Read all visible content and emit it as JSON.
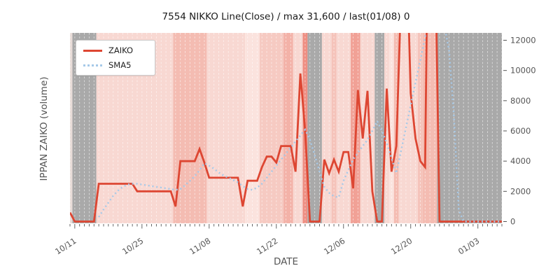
{
  "figure": {
    "title": "7554 NIKKO Line(Close) / max 31,600 / last(01/08) 0",
    "xlabel": "DATE",
    "ylabel": "IPPAN ZAIKO (volume)"
  },
  "legend": {
    "items": [
      {
        "label": "ZAIKO",
        "color": "#dd4632",
        "style": "solid"
      },
      {
        "label": "SMA5",
        "color": "#a6c9e8",
        "style": "dotted"
      }
    ]
  },
  "chart_data": {
    "type": "line",
    "title": "7554 NIKKO Line(Close) / max 31,600 / last(01/08) 0",
    "xlabel": "DATE",
    "ylabel": "IPPAN ZAIKO (volume)",
    "x_tick_labels": [
      "10/11",
      "10/25",
      "11/08",
      "11/22",
      "12/06",
      "12/20",
      "01/03"
    ],
    "y_ticks": [
      0,
      2000,
      4000,
      6000,
      8000,
      10000,
      12000
    ],
    "ylim": [
      -116,
      12487
    ],
    "grid": "vertical white dashed line per day",
    "legend_position": "upper left",
    "annotations": {
      "max": "31,600",
      "last": "last(01/08) 0"
    },
    "dates": [
      "10/10",
      "10/11",
      "10/12",
      "10/13",
      "10/14",
      "10/15",
      "10/16",
      "10/17",
      "10/18",
      "10/19",
      "10/20",
      "10/21",
      "10/22",
      "10/23",
      "10/24",
      "10/25",
      "10/26",
      "10/27",
      "10/28",
      "10/29",
      "10/30",
      "10/31",
      "11/01",
      "11/02",
      "11/03",
      "11/04",
      "11/05",
      "11/06",
      "11/07",
      "11/08",
      "11/09",
      "11/10",
      "11/11",
      "11/12",
      "11/13",
      "11/14",
      "11/15",
      "11/16",
      "11/17",
      "11/18",
      "11/19",
      "11/20",
      "11/21",
      "11/22",
      "11/23",
      "11/24",
      "11/25",
      "11/26",
      "11/27",
      "11/28",
      "11/29",
      "11/30",
      "12/01",
      "12/02",
      "12/03",
      "12/04",
      "12/05",
      "12/06",
      "12/07",
      "12/08",
      "12/09",
      "12/10",
      "12/11",
      "12/12",
      "12/13",
      "12/14",
      "12/15",
      "12/16",
      "12/17",
      "12/18",
      "12/19",
      "12/20",
      "12/21",
      "12/22",
      "12/23",
      "12/24",
      "12/25",
      "12/26",
      "12/27",
      "12/28",
      "12/29",
      "12/30",
      "12/31",
      "01/01",
      "01/02",
      "01/03",
      "01/04",
      "01/05",
      "01/06",
      "01/07",
      "01/08"
    ],
    "series": [
      {
        "name": "ZAIKO",
        "color": "#dd4632",
        "style": "solid",
        "width": 2.8,
        "values": [
          600,
          0,
          0,
          0,
          0,
          0,
          2500,
          2500,
          2500,
          2500,
          2500,
          2500,
          2500,
          2500,
          2000,
          2000,
          2000,
          2000,
          2000,
          2000,
          2000,
          2000,
          1000,
          4000,
          4000,
          4000,
          4000,
          4800,
          3900,
          2900,
          2900,
          2900,
          2900,
          2900,
          2900,
          2900,
          1000,
          2700,
          2700,
          2700,
          3600,
          4300,
          4300,
          3900,
          5000,
          5000,
          5000,
          3300,
          9800,
          6000,
          0,
          0,
          0,
          4100,
          3200,
          4100,
          3300,
          4600,
          4600,
          2200,
          8700,
          5500,
          8650,
          2000,
          0,
          0,
          8800,
          3300,
          5000,
          15000,
          20000,
          8500,
          5500,
          4000,
          3600,
          31600,
          20000,
          0,
          0,
          0,
          0,
          0,
          0,
          0,
          0,
          0,
          0,
          0,
          0,
          0,
          0
        ]
      },
      {
        "name": "SMA5",
        "color": "#a6c9e8",
        "style": "dotted",
        "width": 2.4,
        "values": [
          null,
          null,
          null,
          null,
          null,
          null,
          300,
          800,
          1250,
          1700,
          2050,
          2300,
          2450,
          2500,
          2500,
          2450,
          2400,
          2350,
          2300,
          2250,
          2200,
          2150,
          2100,
          2150,
          2400,
          2700,
          3000,
          3400,
          3860,
          3700,
          3500,
          3250,
          3050,
          2900,
          2750,
          2600,
          2350,
          2150,
          2100,
          2250,
          2500,
          2900,
          3300,
          3700,
          4100,
          4500,
          4900,
          5300,
          5700,
          6090,
          5400,
          4400,
          3300,
          2300,
          1900,
          1670,
          1600,
          2700,
          3400,
          4100,
          4560,
          5000,
          5400,
          6000,
          6650,
          6000,
          5200,
          4200,
          3200,
          4700,
          6200,
          7700,
          9200,
          10700,
          12200,
          14000,
          14500,
          14500,
          13000,
          11300,
          7000,
          800,
          0,
          0,
          0,
          0,
          0,
          0,
          0,
          0,
          0
        ]
      }
    ],
    "background_bands": [
      {
        "start": "10/10",
        "end": "10/10",
        "color": "#e8dcd8"
      },
      {
        "start": "10/11",
        "end": "10/15",
        "color": "#a9a9a9"
      },
      {
        "start": "10/16",
        "end": "10/31",
        "color": "#f8d8d2"
      },
      {
        "start": "11/01",
        "end": "11/07",
        "color": "#f4bcb2"
      },
      {
        "start": "11/08",
        "end": "11/15",
        "color": "#f8d8d2"
      },
      {
        "start": "11/16",
        "end": "11/18",
        "color": "#fbe3de"
      },
      {
        "start": "11/19",
        "end": "11/23",
        "color": "#f6cac2"
      },
      {
        "start": "11/24",
        "end": "11/25",
        "color": "#f3b2a8"
      },
      {
        "start": "11/26",
        "end": "11/27",
        "color": "#f8d8d2"
      },
      {
        "start": "11/28",
        "end": "11/28",
        "color": "#ee8e82"
      },
      {
        "start": "11/29",
        "end": "12/01",
        "color": "#a9a9a9"
      },
      {
        "start": "12/02",
        "end": "12/03",
        "color": "#f8d8d2"
      },
      {
        "start": "12/04",
        "end": "12/04",
        "color": "#f5c3ba"
      },
      {
        "start": "12/05",
        "end": "12/07",
        "color": "#f8d8d2"
      },
      {
        "start": "12/08",
        "end": "12/09",
        "color": "#f1a196"
      },
      {
        "start": "12/10",
        "end": "12/12",
        "color": "#f8d8d2"
      },
      {
        "start": "12/13",
        "end": "12/14",
        "color": "#a9a9a9"
      },
      {
        "start": "12/15",
        "end": "12/15",
        "color": "#f8d8d2"
      },
      {
        "start": "12/16",
        "end": "12/16",
        "color": "#fbe3de"
      },
      {
        "start": "12/17",
        "end": "12/17",
        "color": "#f4bcb2"
      },
      {
        "start": "12/18",
        "end": "12/21",
        "color": "#f8d8d2"
      },
      {
        "start": "12/22",
        "end": "12/22",
        "color": "#f5c3ba"
      },
      {
        "start": "12/23",
        "end": "12/25",
        "color": "#f4bcb2"
      },
      {
        "start": "12/26",
        "end": "01/08",
        "color": "#a9a9a9"
      }
    ]
  }
}
